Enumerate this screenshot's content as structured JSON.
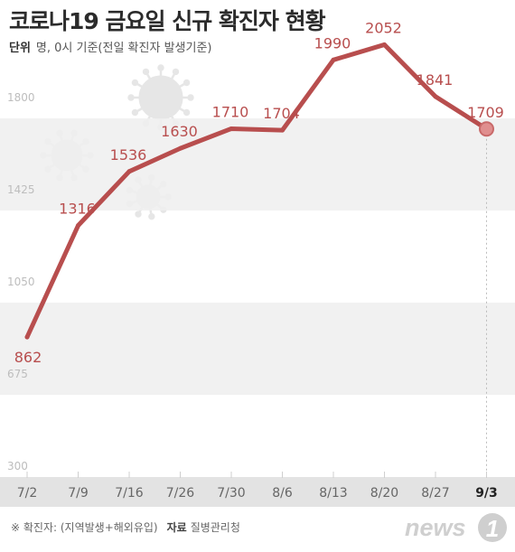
{
  "title": "코로나19 금요일 신규 확진자 현황",
  "subtitle": {
    "unit_key": "단위",
    "unit_text": "명, 0시 기준(전일 확진자 발생기준)"
  },
  "footer": {
    "note": "※ 확진자: (지역발생+해외유입)",
    "source_key": "자료",
    "source": "질병관리청"
  },
  "logo": {
    "text": "news",
    "mark": "1"
  },
  "colors": {
    "line": "#b84e4e",
    "label": "#b84e4e",
    "band": "#efefef",
    "axis_band": "#e3e3e3",
    "tick": "#cfcfcf",
    "axis_text": "#666666",
    "axis_text_last": "#222222",
    "virus": "#e6e6e6",
    "logo": "#cfcfcf"
  },
  "chart_data": {
    "type": "line",
    "categories": [
      "7/2",
      "7/9",
      "7/16",
      "7/26",
      "7/30",
      "8/6",
      "8/13",
      "8/20",
      "8/27",
      "9/3"
    ],
    "values": [
      862,
      1316,
      1536,
      1630,
      1710,
      1704,
      1990,
      2052,
      1841,
      1709
    ],
    "ylim": [
      300,
      2175
    ],
    "yticks": [
      300,
      675,
      1050,
      1425,
      1800
    ],
    "ytick_labels": [
      "300",
      "675",
      "1050",
      "1425",
      "1800"
    ],
    "highlight_last": true,
    "grid": "alternating horizontal bands"
  }
}
